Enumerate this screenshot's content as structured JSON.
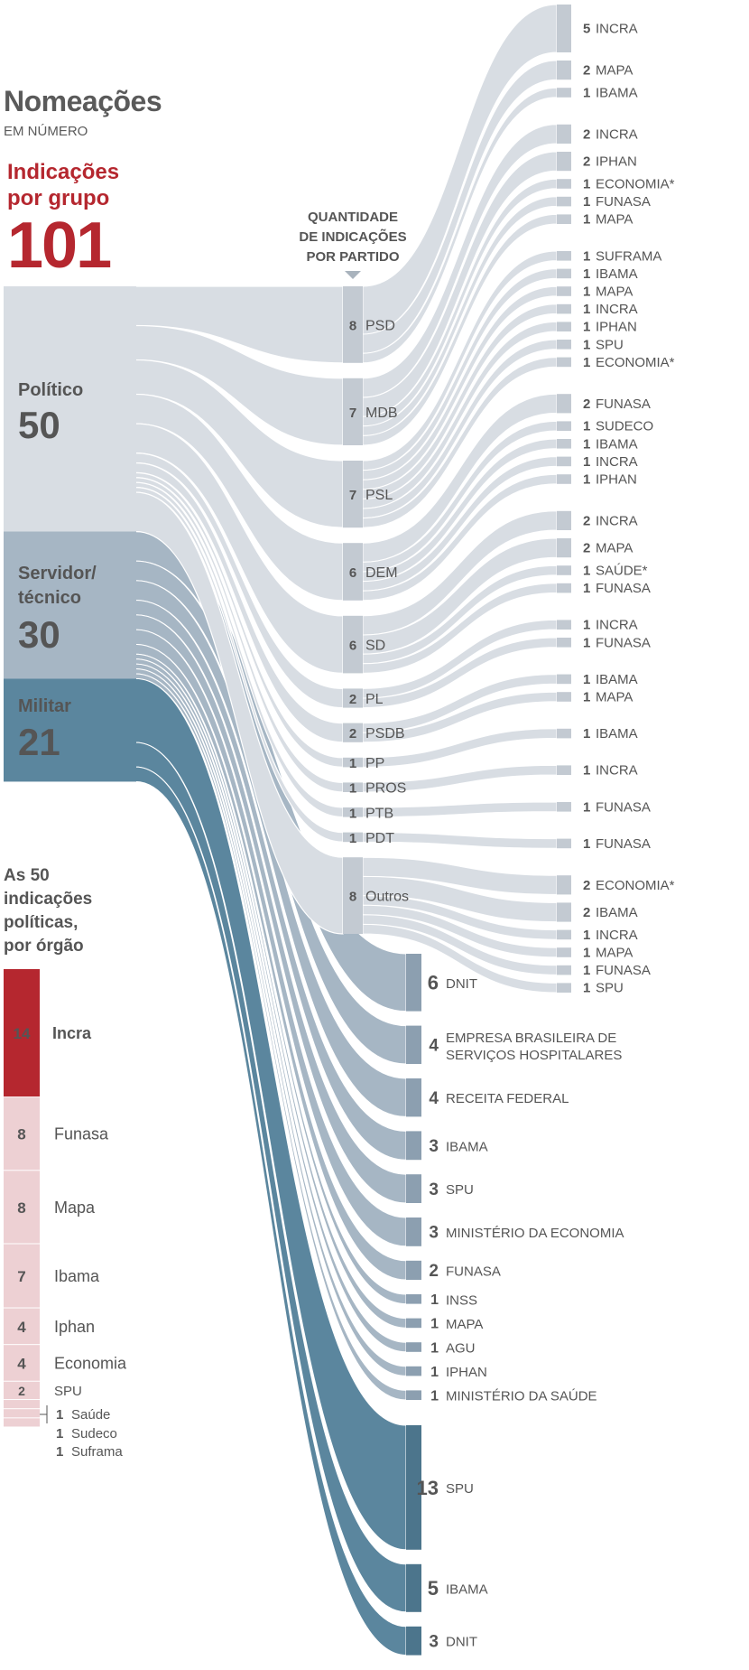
{
  "header": {
    "title": "Nomeações",
    "subtitle": "EM NÚMERO",
    "group_heading_line1": "Indicações",
    "group_heading_line2": "por grupo",
    "total": "101"
  },
  "party_header": [
    "QUANTIDADE",
    "DE INDICAÇÕES",
    "POR PARTIDO"
  ],
  "colors": {
    "politico": "#d8dde3",
    "politico_node": "#c3cad2",
    "servidor": "#a6b6c4",
    "servidor_node": "#8c9fb0",
    "militar": "#5b869e",
    "militar_node": "#4c758c",
    "accent_red": "#b5272f",
    "light_red": "#edd0d3",
    "text": "#555555"
  },
  "chart_data": {
    "type": "sankey",
    "groups": [
      {
        "id": "politico",
        "lines": [
          "Político"
        ],
        "value": 50
      },
      {
        "id": "servidor",
        "lines": [
          "Servidor/",
          "técnico"
        ],
        "value": 30
      },
      {
        "id": "militar",
        "lines": [
          "Militar"
        ],
        "value": 21
      }
    ],
    "parties": [
      {
        "name": "PSD",
        "value": 8,
        "flows": [
          {
            "value": 5,
            "name": "INCRA"
          },
          {
            "value": 2,
            "name": "MAPA"
          },
          {
            "value": 1,
            "name": "IBAMA"
          }
        ]
      },
      {
        "name": "MDB",
        "value": 7,
        "flows": [
          {
            "value": 2,
            "name": "INCRA"
          },
          {
            "value": 2,
            "name": "IPHAN"
          },
          {
            "value": 1,
            "name": "ECONOMIA*"
          },
          {
            "value": 1,
            "name": "FUNASA"
          },
          {
            "value": 1,
            "name": "MAPA"
          }
        ]
      },
      {
        "name": "PSL",
        "value": 7,
        "flows": [
          {
            "value": 1,
            "name": "SUFRAMA"
          },
          {
            "value": 1,
            "name": "IBAMA"
          },
          {
            "value": 1,
            "name": "MAPA"
          },
          {
            "value": 1,
            "name": "INCRA"
          },
          {
            "value": 1,
            "name": "IPHAN"
          },
          {
            "value": 1,
            "name": "SPU"
          },
          {
            "value": 1,
            "name": "ECONOMIA*"
          }
        ]
      },
      {
        "name": "DEM",
        "value": 6,
        "flows": [
          {
            "value": 2,
            "name": "FUNASA"
          },
          {
            "value": 1,
            "name": "SUDECO"
          },
          {
            "value": 1,
            "name": "IBAMA"
          },
          {
            "value": 1,
            "name": "INCRA"
          },
          {
            "value": 1,
            "name": "IPHAN"
          }
        ]
      },
      {
        "name": "SD",
        "value": 6,
        "flows": [
          {
            "value": 2,
            "name": "INCRA"
          },
          {
            "value": 2,
            "name": "MAPA"
          },
          {
            "value": 1,
            "name": "SAÚDE*"
          },
          {
            "value": 1,
            "name": "FUNASA"
          }
        ]
      },
      {
        "name": "PL",
        "value": 2,
        "flows": [
          {
            "value": 1,
            "name": "INCRA"
          },
          {
            "value": 1,
            "name": "FUNASA"
          }
        ]
      },
      {
        "name": "PSDB",
        "value": 2,
        "flows": [
          {
            "value": 1,
            "name": "IBAMA"
          },
          {
            "value": 1,
            "name": "MAPA"
          }
        ]
      },
      {
        "name": "PP",
        "value": 1,
        "flows": [
          {
            "value": 1,
            "name": "IBAMA"
          }
        ]
      },
      {
        "name": "PROS",
        "value": 1,
        "flows": [
          {
            "value": 1,
            "name": "INCRA"
          }
        ]
      },
      {
        "name": "PTB",
        "value": 1,
        "flows": [
          {
            "value": 1,
            "name": "FUNASA"
          }
        ]
      },
      {
        "name": "PDT",
        "value": 1,
        "flows": [
          {
            "value": 1,
            "name": "FUNASA"
          }
        ]
      },
      {
        "name": "Outros",
        "value": 8,
        "flows": [
          {
            "value": 2,
            "name": "ECONOMIA*"
          },
          {
            "value": 2,
            "name": "IBAMA"
          },
          {
            "value": 1,
            "name": "INCRA"
          },
          {
            "value": 1,
            "name": "MAPA"
          },
          {
            "value": 1,
            "name": "FUNASA"
          },
          {
            "value": 1,
            "name": "SPU"
          }
        ]
      }
    ],
    "servidor_targets": [
      {
        "value": 6,
        "lines": [
          "DNIT"
        ]
      },
      {
        "value": 4,
        "lines": [
          "EMPRESA BRASILEIRA DE",
          "SERVIÇOS HOSPITALARES"
        ]
      },
      {
        "value": 4,
        "lines": [
          "RECEITA FEDERAL"
        ]
      },
      {
        "value": 3,
        "lines": [
          "IBAMA"
        ]
      },
      {
        "value": 3,
        "lines": [
          "SPU"
        ]
      },
      {
        "value": 3,
        "lines": [
          "MINISTÉRIO DA ECONOMIA"
        ]
      },
      {
        "value": 2,
        "lines": [
          "FUNASA"
        ]
      },
      {
        "value": 1,
        "lines": [
          "INSS"
        ]
      },
      {
        "value": 1,
        "lines": [
          "MAPA"
        ]
      },
      {
        "value": 1,
        "lines": [
          "AGU"
        ]
      },
      {
        "value": 1,
        "lines": [
          "IPHAN"
        ]
      },
      {
        "value": 1,
        "lines": [
          "MINISTÉRIO DA SAÚDE"
        ]
      }
    ],
    "militar_targets": [
      {
        "value": 13,
        "lines": [
          "SPU"
        ]
      },
      {
        "value": 5,
        "lines": [
          "IBAMA"
        ]
      },
      {
        "value": 3,
        "lines": [
          "DNIT"
        ]
      }
    ],
    "political_by_agency": {
      "title_lines": [
        "As 50",
        "indicações",
        "políticas,",
        "por órgão"
      ],
      "items": [
        {
          "value": 14,
          "name": "Incra"
        },
        {
          "value": 8,
          "name": "Funasa"
        },
        {
          "value": 8,
          "name": "Mapa"
        },
        {
          "value": 7,
          "name": "Ibama"
        },
        {
          "value": 4,
          "name": "Iphan"
        },
        {
          "value": 4,
          "name": "Economia"
        },
        {
          "value": 2,
          "name": "SPU"
        },
        {
          "value": 1,
          "name": "Saúde"
        },
        {
          "value": 1,
          "name": "Sudeco"
        },
        {
          "value": 1,
          "name": "Suframa"
        }
      ]
    }
  }
}
